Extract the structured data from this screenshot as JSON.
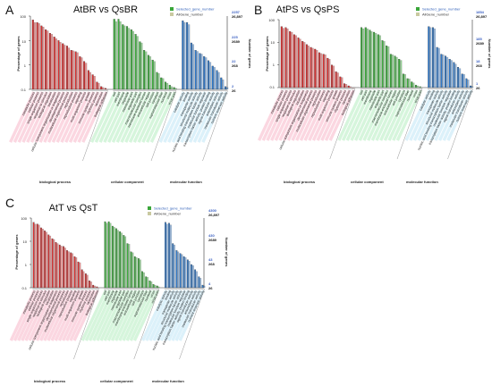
{
  "figure": {
    "legend_selected": "Selected_gene_number",
    "legend_all": "AllGene_number",
    "left_axis_label": "Percentage of genes",
    "right_axis_label": "Number of genes",
    "left_ticks": [
      "100",
      "10",
      "1",
      "0.1"
    ],
    "group_names": [
      "biological process",
      "cellular component",
      "molecular function"
    ],
    "colors": {
      "bp": "#d93030",
      "cc": "#3cae3c",
      "mf": "#2f78c9",
      "bp_light": "#f7b6c9",
      "cc_light": "#b5ecc0",
      "mf_light": "#bfe5f5",
      "right_tick_blue": "#3a5fc2"
    },
    "categories": {
      "bp": [
        "metabolic process",
        "cellular process",
        "single-organism process",
        "response to stimulus",
        "biological regulation",
        "localization",
        "cellular component organization or biogenesis",
        "developmental process",
        "multicellular organismal process",
        "reproduction",
        "reproductive process",
        "signaling",
        "multi-organism process",
        "growth",
        "immune system process",
        "rhythmic process",
        "locomotion",
        "biological adhesion"
      ],
      "cc": [
        "cell",
        "cell part",
        "membrane",
        "organelle",
        "membrane part",
        "organelle part",
        "macromolecular complex",
        "membrane-enclosed lumen",
        "extracellular region",
        "cell junction",
        "symplast",
        "supramolecular fiber",
        "nucleoid",
        "virion",
        "virion part"
      ],
      "mf": [
        "catalytic activity",
        "binding",
        "transporter activity",
        "structural molecule activity",
        "nucleic acid binding transcription factor activity",
        "molecular function regulator",
        "transcription factor activity, protein binding",
        "signal transducer activity",
        "antioxidant activity",
        "molecular transducer activity",
        "nutrient reservoir activity"
      ]
    }
  },
  "panels": [
    {
      "letter": "A",
      "title": "AtBR vs QsBR",
      "right_top_blue": "2257",
      "right_ticks": [
        {
          "blue": "2257",
          "black": "26,897"
        },
        {
          "blue": "225",
          "black": "2689"
        },
        {
          "blue": "22",
          "black": "268"
        },
        {
          "blue": "2",
          "black": "26"
        }
      ]
    },
    {
      "letter": "B",
      "title": "AtPS vs QsPS",
      "right_ticks": [
        {
          "blue": "1854",
          "black": "26,897"
        },
        {
          "blue": "185",
          "black": "2689"
        },
        {
          "blue": "18",
          "black": "268"
        },
        {
          "blue": "1",
          "black": "26"
        }
      ]
    },
    {
      "letter": "C",
      "title": "AtT vs QsT",
      "right_ticks": [
        {
          "blue": "4300",
          "black": "26,897"
        },
        {
          "blue": "430",
          "black": "2689"
        },
        {
          "blue": "43",
          "black": "268"
        },
        {
          "blue": "4",
          "black": "26"
        }
      ]
    }
  ],
  "chart_data": [
    {
      "type": "bar",
      "title": "AtBR vs QsBR",
      "ylabel": "Percentage of genes",
      "y2label": "Number of genes",
      "yscale": "log",
      "ylim": [
        0.1,
        100
      ],
      "series": [
        {
          "name": "Selected_gene_number",
          "values": {
            "bp": [
              70,
              55,
              40,
              28,
              20,
              14,
              10,
              7.5,
              6,
              4,
              3.5,
              2.2,
              1.4,
              0.6,
              0.4,
              0.2,
              0.13,
              0.11
            ],
            "cc": [
              75,
              75,
              45,
              38,
              28,
              18,
              9,
              4,
              2.5,
              1.6,
              0.5,
              0.3,
              0.2,
              0.15,
              0.12
            ],
            "mf": [
              65,
              55,
              8,
              4,
              3,
              2.2,
              1.5,
              0.9,
              0.6,
              0.3,
              0.13
            ]
          }
        },
        {
          "name": "AllGene_number",
          "values": {
            "bp": [
              55,
              50,
              36,
              25,
              18,
              12,
              8.5,
              6.5,
              5,
              3.8,
              3.2,
              2,
              1.2,
              0.5,
              0.35,
              0.18,
              0.12,
              0.1
            ],
            "cc": [
              60,
              60,
              40,
              32,
              24,
              15,
              8,
              3.5,
              2.2,
              1.4,
              0.45,
              0.28,
              0.18,
              0.13,
              0.11
            ],
            "mf": [
              55,
              45,
              7,
              3.6,
              2.8,
              2,
              1.3,
              0.8,
              0.5,
              0.25,
              0.12
            ]
          }
        }
      ]
    },
    {
      "type": "bar",
      "title": "AtPS vs QsPS",
      "ylabel": "Percentage of genes",
      "y2label": "Number of genes",
      "yscale": "log",
      "ylim": [
        0.1,
        100
      ],
      "series": [
        {
          "name": "Selected_gene_number",
          "values": {
            "bp": [
              50,
              45,
              30,
              22,
              16,
              11,
              8,
              6,
              5,
              3.5,
              3,
              2,
              1,
              0.5,
              0.3,
              0.15,
              0.12,
              0.1
            ],
            "cc": [
              45,
              45,
              35,
              28,
              22,
              12,
              7,
              3,
              2.5,
              1.8,
              0.4,
              0.25,
              0.18,
              0.13,
              0.11
            ],
            "mf": [
              50,
              45,
              6,
              3,
              2.5,
              1.8,
              1.3,
              0.8,
              0.4,
              0.25,
              0.12
            ]
          }
        },
        {
          "name": "AllGene_number",
          "values": {
            "bp": [
              42,
              40,
              28,
              20,
              14,
              10,
              7,
              5.5,
              4.5,
              3.2,
              2.8,
              1.8,
              0.9,
              0.45,
              0.28,
              0.14,
              0.11,
              0.1
            ],
            "cc": [
              40,
              40,
              30,
              25,
              20,
              11,
              6.5,
              2.8,
              2.2,
              1.6,
              0.38,
              0.24,
              0.16,
              0.12,
              0.1
            ],
            "mf": [
              45,
              40,
              5.5,
              2.8,
              2.2,
              1.6,
              1.1,
              0.7,
              0.38,
              0.22,
              0.11
            ]
          }
        }
      ]
    },
    {
      "type": "bar",
      "title": "AtT vs QsT",
      "ylabel": "Percentage of genes",
      "y2label": "Number of genes",
      "yscale": "log",
      "ylim": [
        0.1,
        100
      ],
      "series": [
        {
          "name": "Selected_gene_number",
          "values": {
            "bp": [
              65,
              55,
              38,
              28,
              19,
              13,
              9,
              7,
              6,
              4,
              3.2,
              2.2,
              1.3,
              0.6,
              0.4,
              0.2,
              0.13,
              0.11
            ],
            "cc": [
              70,
              70,
              45,
              35,
              26,
              18,
              8,
              3.5,
              2.2,
              1.8,
              0.5,
              0.3,
              0.2,
              0.14,
              0.12
            ],
            "mf": [
              65,
              60,
              8,
              4,
              3,
              2.2,
              1.6,
              1,
              0.6,
              0.3,
              0.13
            ]
          }
        },
        {
          "name": "AllGene_number",
          "values": {
            "bp": [
              55,
              50,
              34,
              25,
              17,
              12,
              8,
              6.2,
              5.2,
              3.6,
              3,
              2,
              1.2,
              0.5,
              0.35,
              0.18,
              0.12,
              0.1
            ],
            "cc": [
              60,
              60,
              40,
              30,
              23,
              16,
              7.5,
              3.2,
              2,
              1.6,
              0.45,
              0.28,
              0.18,
              0.13,
              0.11
            ],
            "mf": [
              55,
              50,
              7,
              3.5,
              2.7,
              2,
              1.4,
              0.9,
              0.5,
              0.26,
              0.12
            ]
          }
        }
      ]
    }
  ]
}
